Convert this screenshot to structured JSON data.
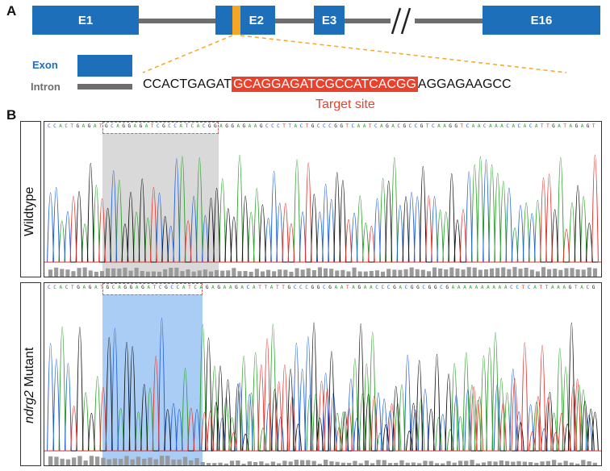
{
  "panels": {
    "a_label": "A",
    "b_label": "B"
  },
  "gene": {
    "exons": [
      "E1",
      "E2",
      "E3",
      "E16"
    ],
    "legend": {
      "exon_label": "Exon",
      "intron_label": "Intron"
    },
    "sequence": {
      "left": "CCACTGAGAT",
      "target": "GCAGGAGATCGCCATCACGG",
      "right": "AGGAGAAGCC"
    },
    "target_site_label": "Target site"
  },
  "traces": {
    "wildtype_label": "Wildtype",
    "mutant_label_gene": "ndrg2",
    "mutant_label_suffix": " Mutant",
    "wildtype_sequence": "CCACTGAGATGCAGGAGATCGCCATCACGGAGGAGAAGCCCTTACTGCCCGGTCAATCAGACGCCGTCAAGGTCAACAAACACACATTGATAGAGT",
    "mutant_sequence": "CCACTGAGATGCAGGAGATCGCCATCAGAGAAGACATTATTGCCCGGCGAATAGAACCCGACGGCGGCGAAAAAAAAAACCTCATTAAAGTACG"
  },
  "colors": {
    "exon": "#1d6fba",
    "intron": "#6e6e6e",
    "target_highlight": "#e8412c",
    "cut_marker": "#f5a623",
    "base_A": "#2ca02c",
    "base_C": "#1f5fd6",
    "base_G": "#111111",
    "base_T": "#e3322b",
    "wildtype_shade": "#d9d9d9",
    "mutant_shade": "#a9cdf5"
  }
}
